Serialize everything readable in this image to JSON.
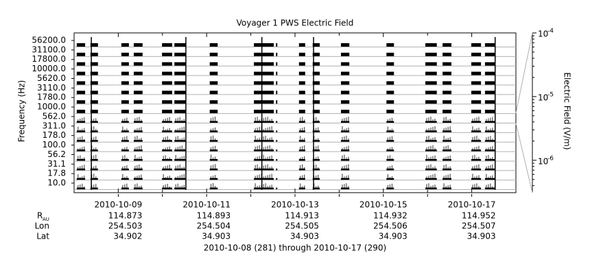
{
  "chart_data": {
    "type": "channel-coverage",
    "title": "Voyager 1 PWS Electric Field",
    "ylabel": "Frequency (Hz)",
    "y2label": "Electric Field (V/m)",
    "channels": [
      "56200.0",
      "31100.0",
      "17800.0",
      "10000.0",
      "5620.0",
      "3110.0",
      "1780.0",
      "1000.0",
      "562.0",
      "311.0",
      "178.0",
      "100.0",
      "56.2",
      "31.1",
      "17.8",
      "10.0"
    ],
    "xlim": [
      0,
      10
    ],
    "xticks": [
      {
        "value": 1,
        "label": "2010-10-09"
      },
      {
        "value": 3,
        "label": "2010-10-11"
      },
      {
        "value": 5,
        "label": "2010-10-13"
      },
      {
        "value": 7,
        "label": "2010-10-15"
      },
      {
        "value": 9,
        "label": "2010-10-17"
      }
    ],
    "xminorticks": [
      2,
      4,
      6,
      8
    ],
    "coverage": [
      [
        0.06,
        0.25
      ],
      [
        0.37,
        0.54
      ],
      [
        1.07,
        1.24
      ],
      [
        1.35,
        1.55
      ],
      [
        1.99,
        2.22
      ],
      [
        2.27,
        2.53
      ],
      [
        3.07,
        3.25
      ],
      [
        4.07,
        4.52
      ],
      [
        4.57,
        4.6
      ],
      [
        5.09,
        5.23
      ],
      [
        5.4,
        5.56
      ],
      [
        6.04,
        6.23
      ],
      [
        7.07,
        7.24
      ],
      [
        7.95,
        8.21
      ],
      [
        8.34,
        8.54
      ],
      [
        8.99,
        9.21
      ],
      [
        9.3,
        9.53
      ]
    ],
    "bursts": [
      0.39,
      2.53,
      4.25,
      5.42,
      9.53
    ],
    "y2log": true,
    "y2lim": [
      3.1e-07,
      0.0001
    ],
    "y2ticks": [
      {
        "value": 0.0001,
        "label": "10",
        "exponent": "-4"
      },
      {
        "value": 1e-05,
        "label": "10",
        "exponent": "-5"
      },
      {
        "value": 1e-06,
        "label": "10",
        "exponent": "-6"
      }
    ],
    "color": "#000000",
    "grid_color": "#b0b0b0"
  },
  "ephemeris": {
    "rows": [
      {
        "label": "R",
        "sub": "AU",
        "values": [
          114.873,
          114.893,
          114.913,
          114.932,
          114.952
        ]
      },
      {
        "label": "Lon",
        "values": [
          254.503,
          254.504,
          254.505,
          254.506,
          254.507
        ]
      },
      {
        "label": "Lat",
        "values": [
          34.902,
          34.903,
          34.903,
          34.903,
          34.903
        ]
      }
    ],
    "footer": "2010-10-08 (281) through 2010-10-17 (290)"
  }
}
